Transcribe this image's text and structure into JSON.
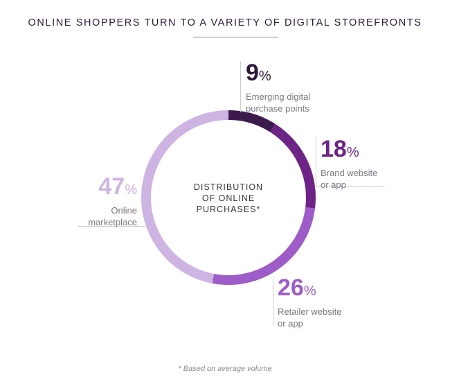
{
  "title": "ONLINE SHOPPERS TURN TO A VARIETY OF DIGITAL STOREFRONTS",
  "footnote": "* Based on average volume",
  "chart_data": {
    "type": "pie",
    "donut": true,
    "center_label": [
      "DISTRIBUTION",
      "OF ONLINE",
      "PURCHASES*"
    ],
    "slices": [
      {
        "label": "Emerging digital purchase points",
        "label_lines": [
          "Emerging digital",
          "purchase points"
        ],
        "value": 9,
        "display": "9",
        "unit": "%",
        "color": "#3d1a4e",
        "text_color": "#2b1838"
      },
      {
        "label": "Brand website or app",
        "label_lines": [
          "Brand website",
          "or app"
        ],
        "value": 18,
        "display": "18",
        "unit": "%",
        "color": "#6e2486",
        "text_color": "#6e2486"
      },
      {
        "label": "Retailer website or app",
        "label_lines": [
          "Retailer website",
          "or app"
        ],
        "value": 26,
        "display": "26",
        "unit": "%",
        "color": "#9d5cc7",
        "text_color": "#9d5cc7"
      },
      {
        "label": "Online marketplace",
        "label_lines": [
          "Online",
          "marketplace"
        ],
        "value": 47,
        "display": "47",
        "unit": "%",
        "color": "#ceb4e3",
        "text_color": "#ceb4e3"
      }
    ]
  }
}
